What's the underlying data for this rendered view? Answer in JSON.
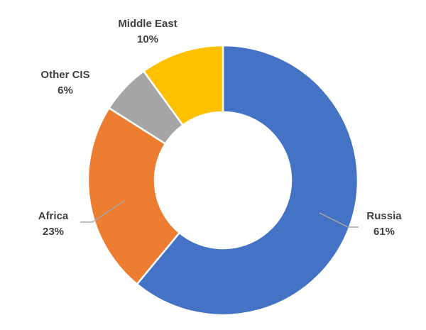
{
  "chart_data": {
    "type": "pie",
    "categories": [
      "Russia",
      "Africa",
      "Other CIS",
      "Middle East"
    ],
    "values": [
      61,
      23,
      6,
      10
    ],
    "value_labels": [
      "61%",
      "23%",
      "6%",
      "10%"
    ],
    "colors": [
      "#4472c4",
      "#ed7d31",
      "#a5a5a5",
      "#ffc000"
    ],
    "title": "",
    "legend": "none",
    "style": "doughnut"
  }
}
